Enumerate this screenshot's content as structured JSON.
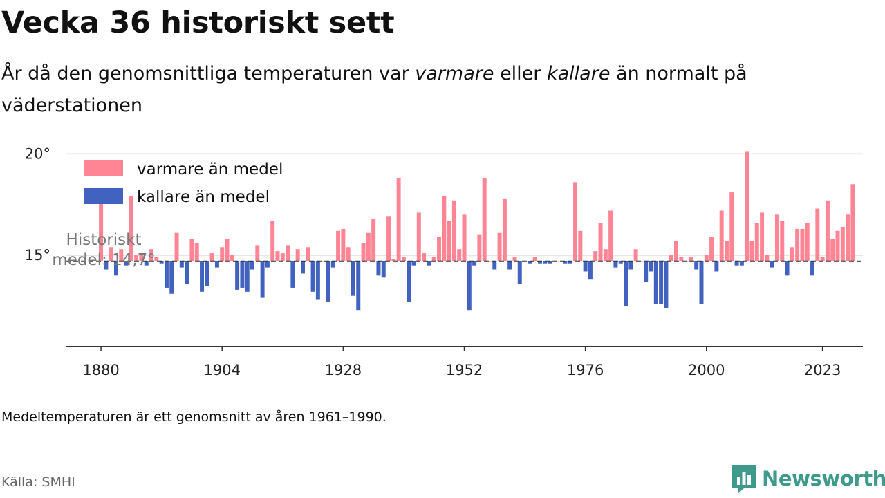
{
  "header": {
    "title": "Vecka 36 historiskt sett",
    "subtitle_pre": "År då den genomsnittliga temperaturen var ",
    "subtitle_warm": "varmare",
    "subtitle_mid": " eller ",
    "subtitle_cold": "kallare",
    "subtitle_post": " än normalt på väderstationen"
  },
  "footer": {
    "note": "Medeltemperaturen är ett genomsnitt av åren 1961–1990.",
    "source": "Källa: SMHI",
    "brand": "Newsworthy"
  },
  "colors": {
    "warm": "#ff8595",
    "cold": "#4262bf",
    "brand": "#3e9a8a"
  },
  "chart_data": {
    "type": "bar",
    "baseline": 14.7,
    "baseline_label": "Historiskt medel: 14,7°",
    "xlim": [
      1873,
      2031
    ],
    "ylim": [
      10.5,
      21
    ],
    "yticks": [
      {
        "value": 15,
        "label": "15°"
      },
      {
        "value": 20,
        "label": "20°"
      }
    ],
    "xticks": [
      {
        "value": 1880,
        "label": "1880"
      },
      {
        "value": 1904,
        "label": "1904"
      },
      {
        "value": 1928,
        "label": "1928"
      },
      {
        "value": 1952,
        "label": "1952"
      },
      {
        "value": 1976,
        "label": "1976"
      },
      {
        "value": 2000,
        "label": "2000"
      },
      {
        "value": 2023,
        "label": "2023"
      }
    ],
    "legend": [
      {
        "key": "warm",
        "label": "varmare än medel"
      },
      {
        "key": "cold",
        "label": "kallare än medel"
      }
    ],
    "legend_position": "top-left",
    "grid": "horizontal",
    "start_year": 1880,
    "values": [
      18.1,
      14.3,
      15.4,
      14.0,
      15.3,
      14.5,
      17.9,
      15.0,
      15.1,
      14.5,
      15.3,
      14.9,
      14.6,
      13.4,
      13.1,
      16.1,
      14.4,
      13.6,
      15.8,
      15.6,
      13.2,
      13.5,
      15.1,
      14.4,
      15.4,
      15.8,
      15.0,
      13.3,
      13.4,
      13.2,
      14.3,
      15.5,
      12.9,
      14.4,
      16.7,
      15.2,
      15.1,
      15.5,
      13.4,
      15.3,
      14.1,
      15.4,
      13.2,
      12.8,
      14.7,
      12.7,
      14.4,
      16.2,
      16.3,
      15.4,
      13.0,
      12.3,
      15.6,
      16.1,
      16.8,
      14.0,
      13.9,
      16.9,
      14.8,
      18.8,
      14.9,
      12.7,
      14.5,
      17.1,
      15.1,
      14.5,
      14.9,
      15.9,
      17.9,
      16.7,
      17.7,
      15.3,
      17.0,
      12.3,
      14.5,
      16.0,
      18.8,
      14.7,
      14.3,
      16.1,
      17.8,
      14.3,
      14.9,
      13.6,
      14.7,
      14.6,
      14.9,
      14.6,
      14.6,
      14.6,
      14.7,
      14.7,
      14.6,
      14.6,
      18.6,
      16.2,
      14.2,
      13.8,
      15.2,
      16.6,
      15.3,
      17.2,
      14.4,
      14.6,
      12.5,
      14.3,
      15.3,
      14.7,
      13.7,
      14.2,
      12.6,
      12.6,
      12.4,
      15.0,
      15.7,
      14.9,
      14.7,
      14.9,
      14.3,
      12.6,
      15.0,
      15.9,
      14.2,
      17.2,
      15.7,
      18.1,
      14.5,
      14.5,
      20.1,
      15.7,
      16.6,
      17.1,
      15.0,
      14.4,
      17.0,
      16.7,
      14.0,
      15.4,
      16.3,
      16.3,
      16.6,
      14.0,
      17.3,
      14.9,
      17.7,
      15.8,
      16.2,
      16.4,
      17.0,
      18.5
    ]
  }
}
